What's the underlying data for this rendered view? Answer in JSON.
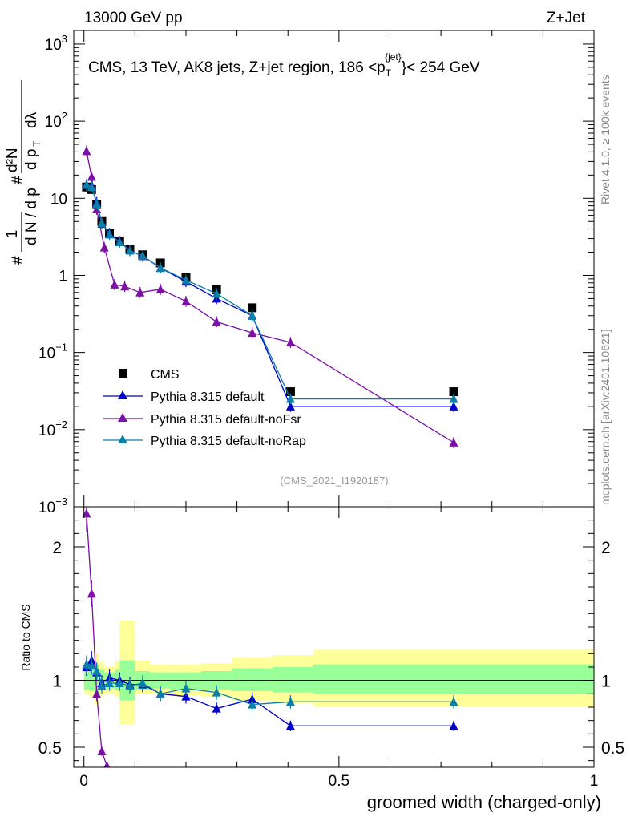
{
  "header": {
    "left": "13000 GeV pp",
    "right": "Z+Jet"
  },
  "side": {
    "rivet": "Rivet 4.1.0, ≥ 100k events",
    "mcplots": "mcplots.cern.ch [arXiv:2401.10621]"
  },
  "colors": {
    "cms": "#000000",
    "default": "#0000cc",
    "nofsr": "#7b0fa8",
    "norap": "#0a7fa8",
    "band_inner": "#99ff99",
    "band_outer": "#ffff99"
  },
  "chart_data": [
    {
      "type": "line",
      "panel": "main",
      "title": "CMS, 13 TeV, AK8 jets, Z+jet region, 186 <p_T^{jet}< 254 GeV",
      "title_main": "CMS, 13 TeV, AK8 jets, Z+jet region, 186 <p",
      "title_sup": "{jet}",
      "title_sub": "T",
      "title_end": "}< 254 GeV",
      "ylabel": "1/(dN/dp_T) d²N/(dp_T dλ)",
      "ylabel_parts": {
        "one": "1",
        "hash": "#",
        "dN": "d N / d p",
        "sub": "T",
        "num": "d²N",
        "den": "d p",
        "lam": "dλ"
      },
      "watermark": "(CMS_2021_I1920187)",
      "yscale": "log",
      "ylim": [
        0.001,
        1500
      ],
      "y_ticks": [
        {
          "v": 1000,
          "base": "10",
          "exp": "3"
        },
        {
          "v": 100,
          "base": "10",
          "exp": "2"
        },
        {
          "v": 10,
          "base": "10",
          "exp": ""
        },
        {
          "v": 1,
          "base": "1",
          "exp": ""
        },
        {
          "v": 0.1,
          "base": "10",
          "exp": "−1"
        },
        {
          "v": 0.01,
          "base": "10",
          "exp": "−2"
        },
        {
          "v": 0.001,
          "base": "10",
          "exp": "−3"
        }
      ],
      "legend": {
        "placement": "bottom-left",
        "entries": [
          "CMS",
          "Pythia 8.315 default",
          "Pythia 8.315 default-noFsr",
          "Pythia 8.315 default-noRap"
        ]
      },
      "series": [
        {
          "name": "CMS",
          "marker": "square",
          "x": [
            0.005,
            0.015,
            0.025,
            0.035,
            0.05,
            0.07,
            0.09,
            0.115,
            0.15,
            0.2,
            0.26,
            0.33,
            0.405,
            0.725
          ],
          "y": [
            14,
            13,
            8.3,
            5.0,
            3.5,
            2.8,
            2.2,
            1.85,
            1.45,
            0.95,
            0.65,
            0.38,
            0.031,
            0.031
          ]
        },
        {
          "name": "Pythia 8.315 default",
          "marker": "triangle",
          "x": [
            0.005,
            0.015,
            0.025,
            0.035,
            0.05,
            0.07,
            0.09,
            0.115,
            0.15,
            0.2,
            0.26,
            0.33,
            0.405,
            0.725
          ],
          "y": [
            15,
            14.5,
            8.8,
            4.7,
            3.5,
            2.75,
            2.1,
            1.78,
            1.25,
            0.83,
            0.5,
            0.3,
            0.02,
            0.02
          ]
        },
        {
          "name": "Pythia 8.315 default-noFsr",
          "marker": "triangle",
          "x": [
            0.005,
            0.015,
            0.025,
            0.04,
            0.06,
            0.08,
            0.11,
            0.15,
            0.2,
            0.26,
            0.33,
            0.405,
            0.725
          ],
          "y": [
            41,
            19,
            7.2,
            2.3,
            0.76,
            0.72,
            0.6,
            0.66,
            0.46,
            0.25,
            0.18,
            0.135,
            0.0068
          ]
        },
        {
          "name": "Pythia 8.315 default-noRap",
          "marker": "triangle",
          "x": [
            0.005,
            0.015,
            0.025,
            0.035,
            0.05,
            0.07,
            0.09,
            0.115,
            0.15,
            0.2,
            0.26,
            0.33,
            0.405,
            0.725
          ],
          "y": [
            15,
            14,
            8.5,
            4.8,
            3.4,
            2.7,
            2.1,
            1.8,
            1.25,
            0.87,
            0.58,
            0.3,
            0.025,
            0.025
          ]
        }
      ]
    },
    {
      "type": "line",
      "panel": "ratio",
      "xlabel": "groomed width (charged-only)",
      "ylabel": "Ratio to CMS",
      "xlim": [
        -0.02,
        1.0
      ],
      "ylim": [
        0.35,
        2.3
      ],
      "x_ticks": [
        {
          "v": 0,
          "label": "0"
        },
        {
          "v": 0.5,
          "label": "0.5"
        },
        {
          "v": 1,
          "label": "1"
        }
      ],
      "y_ticks": [
        {
          "v": 0.5,
          "label": "0.5"
        },
        {
          "v": 1,
          "label": "1"
        },
        {
          "v": 2,
          "label": "2"
        }
      ],
      "bands": [
        {
          "x0": 0.0,
          "x1": 0.01,
          "inner": [
            0.93,
            1.07
          ],
          "outer": [
            0.9,
            1.12
          ]
        },
        {
          "x0": 0.01,
          "x1": 0.02,
          "inner": [
            0.92,
            1.1
          ],
          "outer": [
            0.88,
            1.14
          ]
        },
        {
          "x0": 0.02,
          "x1": 0.03,
          "inner": [
            0.9,
            1.12
          ],
          "outer": [
            0.82,
            1.2
          ]
        },
        {
          "x0": 0.03,
          "x1": 0.04,
          "inner": [
            0.93,
            1.08
          ],
          "outer": [
            0.88,
            1.14
          ]
        },
        {
          "x0": 0.04,
          "x1": 0.06,
          "inner": [
            0.94,
            1.06
          ],
          "outer": [
            0.9,
            1.1
          ]
        },
        {
          "x0": 0.06,
          "x1": 0.07,
          "inner": [
            0.93,
            1.08
          ],
          "outer": [
            0.88,
            1.14
          ]
        },
        {
          "x0": 0.07,
          "x1": 0.1,
          "inner": [
            0.85,
            1.15
          ],
          "outer": [
            0.67,
            1.45
          ]
        },
        {
          "x0": 0.1,
          "x1": 0.13,
          "inner": [
            0.93,
            1.07
          ],
          "outer": [
            0.9,
            1.15
          ]
        },
        {
          "x0": 0.13,
          "x1": 0.17,
          "inner": [
            0.94,
            1.06
          ],
          "outer": [
            0.9,
            1.12
          ]
        },
        {
          "x0": 0.17,
          "x1": 0.23,
          "inner": [
            0.93,
            1.06
          ],
          "outer": [
            0.89,
            1.12
          ]
        },
        {
          "x0": 0.23,
          "x1": 0.29,
          "inner": [
            0.93,
            1.07
          ],
          "outer": [
            0.88,
            1.13
          ]
        },
        {
          "x0": 0.29,
          "x1": 0.37,
          "inner": [
            0.92,
            1.09
          ],
          "outer": [
            0.85,
            1.17
          ]
        },
        {
          "x0": 0.37,
          "x1": 0.45,
          "inner": [
            0.91,
            1.1
          ],
          "outer": [
            0.83,
            1.19
          ]
        },
        {
          "x0": 0.45,
          "x1": 1.0,
          "inner": [
            0.9,
            1.12
          ],
          "outer": [
            0.8,
            1.23
          ]
        }
      ],
      "series": [
        {
          "name": "Pythia 8.315 default",
          "x": [
            0.005,
            0.015,
            0.025,
            0.035,
            0.05,
            0.07,
            0.09,
            0.115,
            0.15,
            0.2,
            0.26,
            0.33,
            0.405,
            0.725
          ],
          "y": [
            1.1,
            1.15,
            1.06,
            0.98,
            1.02,
            1.0,
            0.97,
            0.97,
            0.9,
            0.88,
            0.79,
            0.86,
            0.66,
            0.66
          ]
        },
        {
          "name": "Pythia 8.315 default-noFsr",
          "x": [
            0.005,
            0.015,
            0.025,
            0.035,
            0.045
          ],
          "y": [
            2.25,
            1.65,
            0.9,
            0.47,
            0.36
          ]
        },
        {
          "name": "Pythia 8.315 default-noRap",
          "x": [
            0.005,
            0.015,
            0.025,
            0.035,
            0.05,
            0.07,
            0.09,
            0.115,
            0.15,
            0.2,
            0.26,
            0.33,
            0.405,
            0.725
          ],
          "y": [
            1.12,
            1.11,
            1.07,
            0.96,
            0.98,
            0.98,
            0.96,
            0.98,
            0.9,
            0.94,
            0.91,
            0.82,
            0.84,
            0.84
          ]
        }
      ]
    }
  ]
}
